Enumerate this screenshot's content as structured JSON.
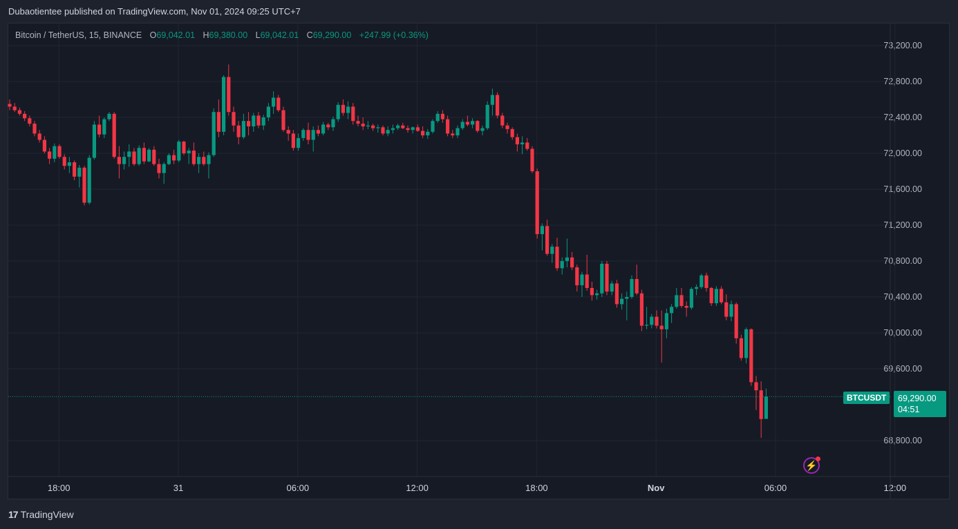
{
  "publisher_line": "Dubaotientee published on TradingView.com, Nov 01, 2024 09:25 UTC+7",
  "legend": {
    "symbol": "Bitcoin / TetherUS, 15, BINANCE",
    "o_label": "O",
    "o_value": "69,042.01",
    "h_label": "H",
    "h_value": "69,380.00",
    "l_label": "L",
    "l_value": "69,042.01",
    "c_label": "C",
    "c_value": "69,290.00",
    "change": "+247.99 (+0.36%)"
  },
  "last_price": {
    "symbol_tag": "BTCUSDT",
    "price": "69,290.00",
    "countdown": "04:51"
  },
  "branding": {
    "logo_mark": "17",
    "logo_text": "TradingView"
  },
  "colors": {
    "up": "#089981",
    "down": "#f23645",
    "background": "#161a25",
    "grid": "#232632",
    "text": "#b2b5be"
  },
  "icons": {
    "alert": "lightning-bolt-icon"
  },
  "chart_data": {
    "type": "candlestick",
    "interval": "15",
    "ylim": [
      68600,
      73500
    ],
    "y_ticks": [
      {
        "value": 73200,
        "label": "73,200.00"
      },
      {
        "value": 72800,
        "label": "72,800.00"
      },
      {
        "value": 72400,
        "label": "72,400.00"
      },
      {
        "value": 72000,
        "label": "72,000.00"
      },
      {
        "value": 71600,
        "label": "71,600.00"
      },
      {
        "value": 71200,
        "label": "71,200.00"
      },
      {
        "value": 70800,
        "label": "70,800.00"
      },
      {
        "value": 70400,
        "label": "70,400.00"
      },
      {
        "value": 70000,
        "label": "70,000.00"
      },
      {
        "value": 69600,
        "label": "69,600.00"
      },
      {
        "value": 68800,
        "label": "68,800.00"
      }
    ],
    "x_ticks": [
      {
        "index": 6,
        "label": "18:00"
      },
      {
        "index": 30,
        "label": "31"
      },
      {
        "index": 54,
        "label": "06:00"
      },
      {
        "index": 78,
        "label": "12:00"
      },
      {
        "index": 102,
        "label": "18:00"
      },
      {
        "index": 126,
        "label": "Nov",
        "bold": true
      },
      {
        "index": 150,
        "label": "06:00"
      },
      {
        "index": 174,
        "label": "12:00"
      }
    ],
    "last_value": 69290,
    "candles": [
      [
        72550,
        72600,
        72480,
        72520
      ],
      [
        72520,
        72560,
        72460,
        72480
      ],
      [
        72480,
        72510,
        72420,
        72440
      ],
      [
        72440,
        72470,
        72360,
        72390
      ],
      [
        72390,
        72420,
        72300,
        72330
      ],
      [
        72330,
        72360,
        72190,
        72220
      ],
      [
        72220,
        72260,
        72120,
        72150
      ],
      [
        72150,
        72190,
        72000,
        72020
      ],
      [
        72020,
        72060,
        71880,
        71940
      ],
      [
        71940,
        72110,
        71900,
        72080
      ],
      [
        72080,
        72100,
        71940,
        71960
      ],
      [
        71960,
        71990,
        71820,
        71860
      ],
      [
        71860,
        71960,
        71780,
        71900
      ],
      [
        71900,
        71920,
        71700,
        71740
      ],
      [
        71740,
        71870,
        71620,
        71840
      ],
      [
        71840,
        71860,
        71420,
        71450
      ],
      [
        71450,
        71980,
        71430,
        71950
      ],
      [
        71950,
        72360,
        71930,
        72320
      ],
      [
        72320,
        72420,
        72180,
        72210
      ],
      [
        72210,
        72400,
        72170,
        72380
      ],
      [
        72380,
        72460,
        72360,
        72440
      ],
      [
        72440,
        72460,
        71940,
        71960
      ],
      [
        71960,
        72080,
        71720,
        71880
      ],
      [
        71880,
        72020,
        71820,
        71960
      ],
      [
        71960,
        72100,
        71850,
        72020
      ],
      [
        72020,
        72060,
        71860,
        71880
      ],
      [
        71880,
        72090,
        71860,
        72060
      ],
      [
        72060,
        72120,
        71880,
        71910
      ],
      [
        71910,
        72060,
        71900,
        72040
      ],
      [
        72040,
        72080,
        71860,
        71880
      ],
      [
        71880,
        71940,
        71720,
        71780
      ],
      [
        71780,
        71900,
        71660,
        71880
      ],
      [
        71880,
        72000,
        71870,
        71980
      ],
      [
        71980,
        72040,
        71880,
        71920
      ],
      [
        71920,
        72150,
        71900,
        72130
      ],
      [
        72130,
        72140,
        71980,
        72000
      ],
      [
        72000,
        72060,
        71880,
        72030
      ],
      [
        72030,
        72120,
        71860,
        71880
      ],
      [
        71880,
        72000,
        71780,
        71960
      ],
      [
        71960,
        72020,
        71860,
        71880
      ],
      [
        71880,
        72010,
        71720,
        71980
      ],
      [
        71980,
        72500,
        71960,
        72460
      ],
      [
        72460,
        72600,
        72180,
        72240
      ],
      [
        72240,
        72870,
        72200,
        72850
      ],
      [
        72850,
        72990,
        72420,
        72460
      ],
      [
        72460,
        72520,
        72240,
        72310
      ],
      [
        72310,
        72360,
        72100,
        72180
      ],
      [
        72180,
        72440,
        72160,
        72360
      ],
      [
        72360,
        72460,
        72200,
        72300
      ],
      [
        72300,
        72450,
        72240,
        72420
      ],
      [
        72420,
        72460,
        72280,
        72310
      ],
      [
        72310,
        72430,
        72260,
        72400
      ],
      [
        72400,
        72560,
        72360,
        72520
      ],
      [
        72520,
        72690,
        72440,
        72620
      ],
      [
        72620,
        72650,
        72460,
        72480
      ],
      [
        72480,
        72520,
        72240,
        72260
      ],
      [
        72260,
        72300,
        72140,
        72220
      ],
      [
        72220,
        72260,
        72030,
        72060
      ],
      [
        72060,
        72220,
        72030,
        72170
      ],
      [
        72170,
        72280,
        72140,
        72260
      ],
      [
        72260,
        72340,
        72100,
        72150
      ],
      [
        72150,
        72300,
        72020,
        72260
      ],
      [
        72260,
        72310,
        72190,
        72220
      ],
      [
        72220,
        72350,
        72200,
        72320
      ],
      [
        72320,
        72340,
        72260,
        72290
      ],
      [
        72290,
        72410,
        72250,
        72380
      ],
      [
        72380,
        72570,
        72350,
        72540
      ],
      [
        72540,
        72600,
        72420,
        72450
      ],
      [
        72450,
        72580,
        72380,
        72520
      ],
      [
        72520,
        72560,
        72320,
        72360
      ],
      [
        72360,
        72420,
        72300,
        72330
      ],
      [
        72330,
        72400,
        72260,
        72300
      ],
      [
        72300,
        72360,
        72270,
        72310
      ],
      [
        72310,
        72330,
        72250,
        72280
      ],
      [
        72280,
        72320,
        72230,
        72290
      ],
      [
        72290,
        72310,
        72200,
        72220
      ],
      [
        72220,
        72300,
        72190,
        72260
      ],
      [
        72260,
        72320,
        72220,
        72280
      ],
      [
        72280,
        72330,
        72260,
        72310
      ],
      [
        72310,
        72340,
        72270,
        72280
      ],
      [
        72280,
        72310,
        72230,
        72260
      ],
      [
        72260,
        72300,
        72220,
        72290
      ],
      [
        72290,
        72320,
        72240,
        72250
      ],
      [
        72250,
        72300,
        72170,
        72200
      ],
      [
        72200,
        72270,
        72160,
        72240
      ],
      [
        72240,
        72380,
        72220,
        72360
      ],
      [
        72360,
        72470,
        72340,
        72440
      ],
      [
        72440,
        72480,
        72340,
        72380
      ],
      [
        72380,
        72420,
        72190,
        72220
      ],
      [
        72220,
        72260,
        72170,
        72200
      ],
      [
        72200,
        72310,
        72170,
        72280
      ],
      [
        72280,
        72380,
        72260,
        72350
      ],
      [
        72350,
        72420,
        72300,
        72320
      ],
      [
        72320,
        72390,
        72280,
        72360
      ],
      [
        72360,
        72370,
        72230,
        72250
      ],
      [
        72250,
        72310,
        72200,
        72280
      ],
      [
        72280,
        72580,
        72260,
        72540
      ],
      [
        72540,
        72720,
        72420,
        72650
      ],
      [
        72650,
        72680,
        72390,
        72420
      ],
      [
        72420,
        72450,
        72280,
        72310
      ],
      [
        72310,
        72340,
        72220,
        72270
      ],
      [
        72270,
        72290,
        72150,
        72180
      ],
      [
        72180,
        72220,
        72020,
        72100
      ],
      [
        72100,
        72190,
        71990,
        72120
      ],
      [
        72120,
        72170,
        72030,
        72050
      ],
      [
        72050,
        72080,
        71780,
        71800
      ],
      [
        71800,
        71830,
        71050,
        71100
      ],
      [
        71100,
        71220,
        70920,
        71190
      ],
      [
        71190,
        71260,
        70860,
        70880
      ],
      [
        70880,
        70990,
        70780,
        70960
      ],
      [
        70960,
        71060,
        70690,
        70720
      ],
      [
        70720,
        70840,
        70650,
        70800
      ],
      [
        70800,
        71050,
        70730,
        70840
      ],
      [
        70840,
        70900,
        70700,
        70730
      ],
      [
        70730,
        70760,
        70460,
        70530
      ],
      [
        70530,
        70680,
        70400,
        70650
      ],
      [
        70650,
        70870,
        70470,
        70500
      ],
      [
        70500,
        70570,
        70360,
        70420
      ],
      [
        70420,
        70480,
        70370,
        70440
      ],
      [
        70440,
        70800,
        70400,
        70770
      ],
      [
        70770,
        70800,
        70420,
        70460
      ],
      [
        70460,
        70580,
        70420,
        70550
      ],
      [
        70550,
        70590,
        70280,
        70320
      ],
      [
        70320,
        70440,
        70260,
        70380
      ],
      [
        70380,
        70460,
        70140,
        70400
      ],
      [
        70400,
        70640,
        70380,
        70600
      ],
      [
        70600,
        70760,
        70420,
        70440
      ],
      [
        70440,
        70480,
        70020,
        70080
      ],
      [
        70080,
        70290,
        70040,
        70090
      ],
      [
        70090,
        70210,
        70050,
        70180
      ],
      [
        70180,
        70250,
        70050,
        70080
      ],
      [
        70080,
        70250,
        69670,
        70040
      ],
      [
        70040,
        70270,
        69940,
        70220
      ],
      [
        70220,
        70320,
        70110,
        70290
      ],
      [
        70290,
        70500,
        70270,
        70420
      ],
      [
        70420,
        70500,
        70280,
        70300
      ],
      [
        70300,
        70350,
        70180,
        70280
      ],
      [
        70280,
        70510,
        70260,
        70490
      ],
      [
        70490,
        70540,
        70420,
        70510
      ],
      [
        70510,
        70660,
        70490,
        70640
      ],
      [
        70640,
        70670,
        70460,
        70500
      ],
      [
        70500,
        70510,
        70300,
        70330
      ],
      [
        70330,
        70520,
        70300,
        70490
      ],
      [
        70490,
        70520,
        70320,
        70340
      ],
      [
        70340,
        70430,
        70140,
        70180
      ],
      [
        70180,
        70360,
        70130,
        70320
      ],
      [
        70320,
        70340,
        69880,
        69940
      ],
      [
        69940,
        69980,
        69690,
        69720
      ],
      [
        69720,
        70060,
        69660,
        70040
      ],
      [
        70040,
        70050,
        69410,
        69450
      ],
      [
        69450,
        69520,
        69140,
        69360
      ],
      [
        69360,
        69460,
        68830,
        69040
      ],
      [
        69042.01,
        69380,
        69042.01,
        69290
      ]
    ]
  }
}
